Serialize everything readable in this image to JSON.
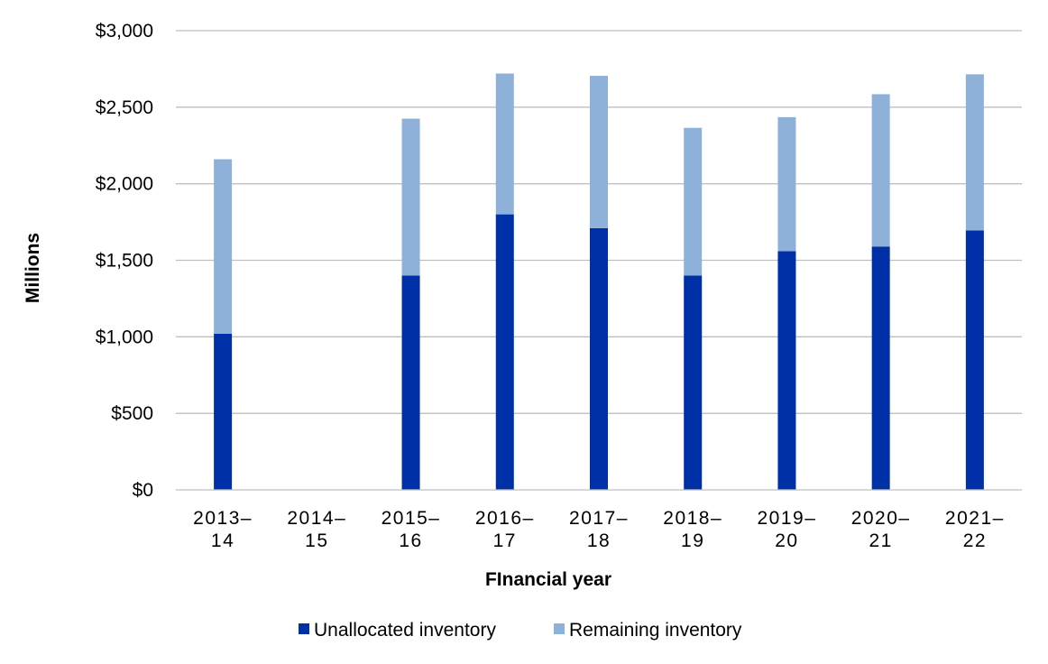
{
  "chart_data": {
    "type": "bar",
    "stacked": true,
    "categories": [
      [
        "2013–",
        "14"
      ],
      [
        "2014–",
        "15"
      ],
      [
        "2015–",
        "16"
      ],
      [
        "2016–",
        "17"
      ],
      [
        "2017–",
        "18"
      ],
      [
        "2018–",
        "19"
      ],
      [
        "2019–",
        "20"
      ],
      [
        "2020–",
        "21"
      ],
      [
        "2021–",
        "22"
      ]
    ],
    "series": [
      {
        "name": "Unallocated inventory",
        "color": "#0030A8",
        "values": [
          1020,
          null,
          1400,
          1800,
          1710,
          1400,
          1560,
          1590,
          1695
        ]
      },
      {
        "name": "Remaining inventory",
        "color": "#8EB1DA",
        "values": [
          1140,
          null,
          1025,
          920,
          995,
          965,
          875,
          995,
          1020
        ]
      }
    ],
    "xlabel": "FInancial year",
    "ylabel": "Millions",
    "ylim": [
      0,
      3000
    ],
    "yticks": [
      0,
      500,
      1000,
      1500,
      2000,
      2500,
      3000
    ],
    "ytick_labels": [
      "$0",
      "$500",
      "$1,000",
      "$1,500",
      "$2,000",
      "$2,500",
      "$3,000"
    ],
    "grid": true,
    "legend_position": "bottom"
  }
}
